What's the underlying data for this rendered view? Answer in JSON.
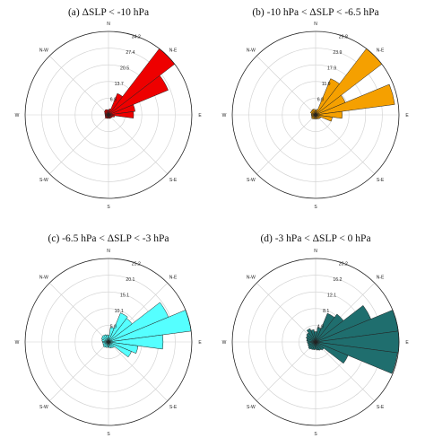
{
  "figure": {
    "panels": [
      {
        "title": "(a) ΔSLP < -10 hPa"
      },
      {
        "title": "(b) -10 hPa < ΔSLP < -6.5 hPa"
      },
      {
        "title": "(c) -6.5 hPa < ΔSLP < -3 hPa"
      },
      {
        "title": "(d) -3 hPa < ΔSLP < 0 hPa"
      }
    ]
  },
  "chart_data": [
    {
      "type": "rose",
      "title": "(a) ΔSLP < -10 hPa",
      "directions": [
        "N",
        "N-E",
        "E",
        "S-E",
        "S",
        "S-W",
        "W",
        "N-W"
      ],
      "ring_labels": [
        "6.8",
        "13.7",
        "20.5",
        "27.4",
        "34.2"
      ],
      "rmax": 34.2,
      "color": "#ee0000",
      "bins_deg": [
        45,
        60,
        75,
        90,
        105,
        120,
        135,
        150,
        165,
        180,
        195,
        210,
        225,
        240,
        255,
        270,
        285,
        300,
        315,
        330,
        345,
        0,
        15,
        30
      ],
      "values": [
        34.2,
        26.5,
        11.0,
        10.3,
        2.5,
        1.8,
        1.6,
        1.6,
        1.5,
        1.3,
        1.5,
        1.6,
        1.8,
        1.5,
        1.4,
        1.4,
        1.5,
        1.8,
        2.2,
        2.4,
        2.2,
        2.0,
        2.5,
        9.5
      ]
    },
    {
      "type": "rose",
      "title": "(b) -10 hPa < ΔSLP < -6.5 hPa",
      "directions": [
        "N",
        "N-E",
        "E",
        "S-E",
        "S",
        "S-W",
        "W",
        "N-W"
      ],
      "ring_labels": [
        "6.0",
        "11.9",
        "17.9",
        "23.9",
        "29.8"
      ],
      "rmax": 29.8,
      "color": "#f5a000",
      "bins_deg": [
        45,
        60,
        75,
        90,
        105,
        120,
        135,
        150,
        165,
        180,
        195,
        210,
        225,
        240,
        255,
        270,
        285,
        300,
        315,
        330,
        345,
        0,
        15,
        30
      ],
      "values": [
        29.8,
        11.5,
        28.5,
        9.5,
        6.0,
        2.0,
        1.8,
        1.6,
        1.5,
        1.4,
        1.5,
        1.6,
        1.8,
        1.6,
        1.5,
        1.5,
        1.6,
        2.0,
        2.0,
        2.2,
        2.1,
        1.6,
        2.0,
        14.0
      ]
    },
    {
      "type": "rose",
      "title": "(c) -6.5 hPa < ΔSLP < -3 hPa",
      "directions": [
        "N",
        "N-E",
        "E",
        "S-E",
        "S",
        "S-W",
        "W",
        "N-W"
      ],
      "ring_labels": [
        "5.0",
        "10.1",
        "15.1",
        "20.1",
        "25.2"
      ],
      "rmax": 25.2,
      "color": "#55ffff",
      "bins_deg": [
        45,
        60,
        75,
        90,
        105,
        120,
        135,
        150,
        165,
        180,
        195,
        210,
        225,
        240,
        255,
        270,
        285,
        300,
        315,
        330,
        345,
        0,
        15,
        30
      ],
      "values": [
        9.0,
        19.6,
        25.2,
        16.5,
        9.0,
        7.5,
        2.2,
        2.0,
        1.8,
        1.6,
        1.7,
        1.8,
        2.0,
        1.8,
        1.7,
        1.8,
        2.0,
        2.3,
        2.5,
        2.4,
        2.2,
        2.0,
        4.5,
        9.5
      ]
    },
    {
      "type": "rose",
      "title": "(d) -3 hPa < ΔSLP < 0 hPa",
      "directions": [
        "N",
        "N-E",
        "E",
        "S-E",
        "S",
        "S-W",
        "W",
        "N-W"
      ],
      "ring_labels": [
        "4.0",
        "8.1",
        "12.1",
        "16.2",
        "20.2"
      ],
      "rmax": 20.2,
      "color": "#1f6e6e",
      "bins_deg": [
        45,
        60,
        75,
        90,
        105,
        120,
        135,
        150,
        165,
        180,
        195,
        210,
        225,
        240,
        255,
        270,
        285,
        300,
        315,
        330,
        345,
        0,
        15,
        30
      ],
      "values": [
        8.5,
        14.5,
        20.2,
        20.2,
        20.0,
        8.5,
        2.5,
        2.2,
        2.0,
        1.8,
        1.9,
        2.0,
        2.2,
        2.0,
        1.9,
        2.0,
        2.2,
        2.5,
        2.8,
        3.5,
        3.0,
        2.5,
        3.5,
        7.5
      ]
    }
  ]
}
